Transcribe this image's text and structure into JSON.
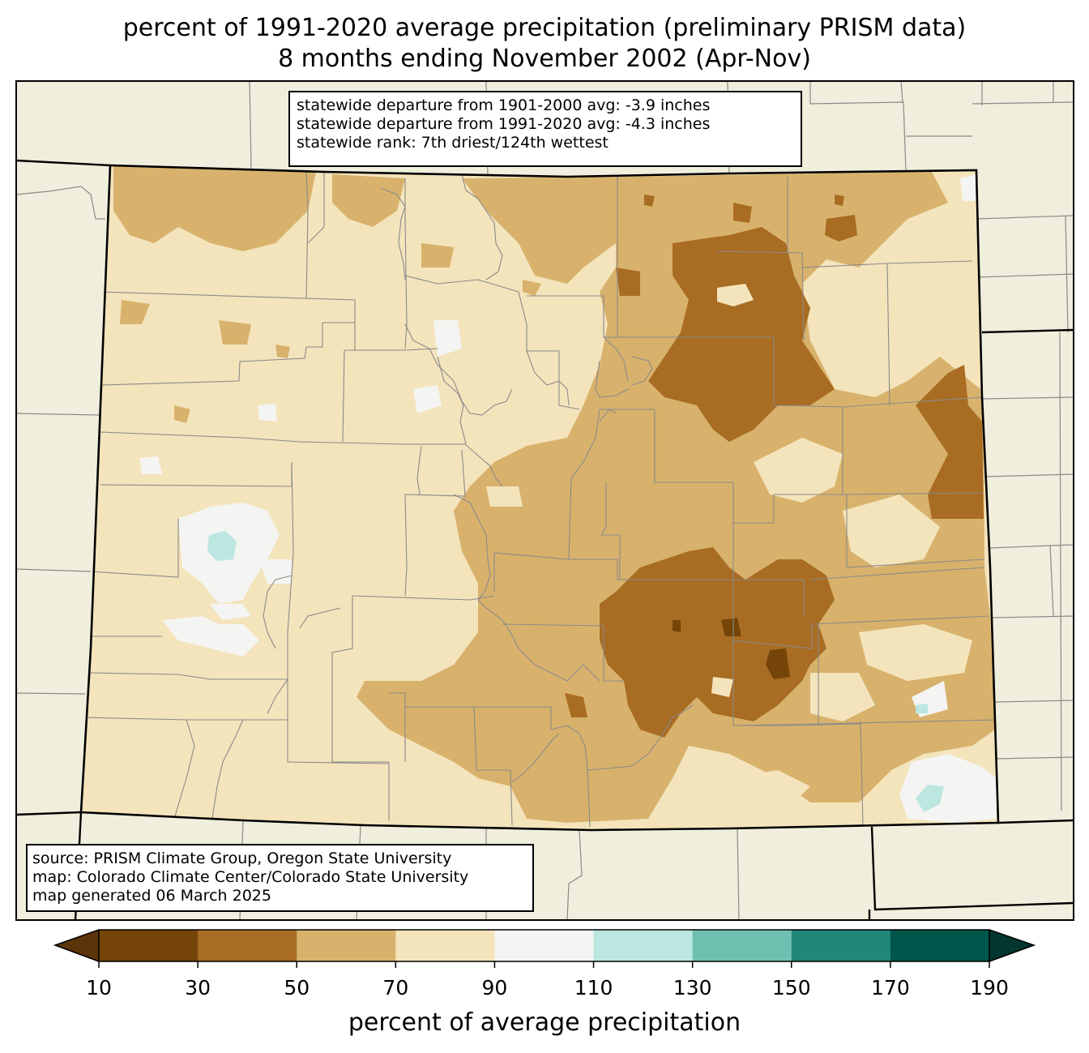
{
  "title": {
    "line1": "percent of 1991-2020 average precipitation (preliminary PRISM data)",
    "line2": "8 months ending November 2002 (Apr-Nov)"
  },
  "stats": {
    "line1": "statewide departure from 1901-2000 avg: -3.9 inches",
    "line2": "statewide departure from 1991-2020 avg: -4.3 inches",
    "line3": "statewide rank: 7th driest/124th wettest"
  },
  "source": {
    "line1": "source: PRISM Climate Group, Oregon State University",
    "line2": "map: Colorado Climate Center/Colorado State University",
    "line3": "map generated 06 March 2025"
  },
  "colorbar": {
    "label": "percent of average precipitation",
    "ticks": [
      "10",
      "30",
      "50",
      "70",
      "90",
      "110",
      "130",
      "150",
      "170",
      "190"
    ],
    "colors": [
      "#5c3409",
      "#744408",
      "#a86c22",
      "#d8b26c",
      "#f4e4bc",
      "#f4f4f2",
      "#bce6e0",
      "#70c0b2",
      "#218779",
      "#01564b",
      "#01372f"
    ]
  },
  "map_colors": {
    "background": "#f0eedc",
    "c30_50": "#a86c22",
    "c50_70": "#d8b26c",
    "c70_90": "#f4e4bc",
    "c90_110": "#f4f4f2",
    "c110_130": "#bce6e0",
    "c10_30": "#744408"
  }
}
